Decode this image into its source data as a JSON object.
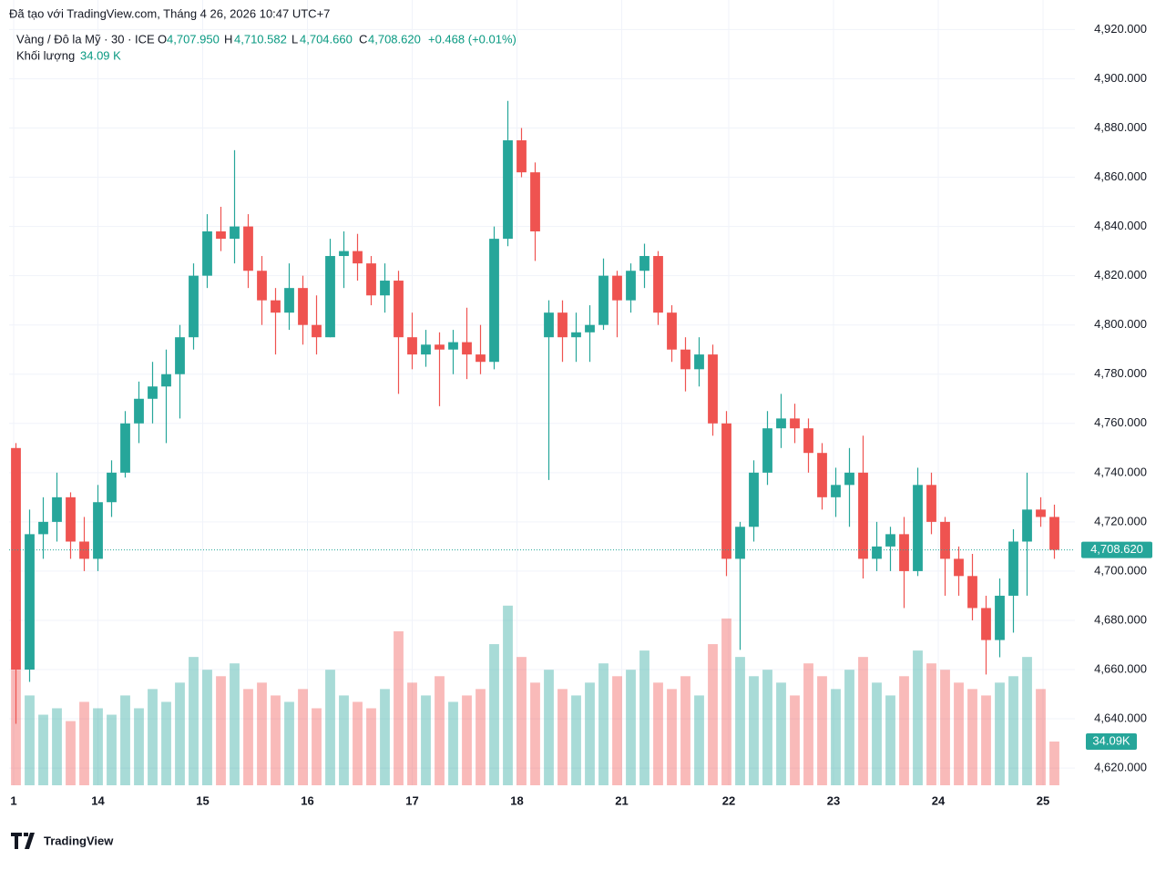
{
  "header": {
    "created": "Đã tạo với TradingView.com, Tháng 4 26, 2026 10:47 UTC+7",
    "symbol": "Vàng / Đô la Mỹ · 30 · ICE",
    "o_label": "O",
    "o_value": "4,707.950",
    "h_label": "H",
    "h_value": "4,710.582",
    "l_label": "L",
    "l_value": "4,704.660",
    "c_label": "C",
    "c_value": "4,708.620",
    "change": "+0.468 (+0.01%)",
    "volume_label": "Khối lượng",
    "volume_value": "34.09 K",
    "logo": "TradingView"
  },
  "chart_data": {
    "type": "candlestick",
    "x": [
      3,
      9,
      15,
      21,
      27,
      33,
      39,
      45,
      51,
      57,
      63,
      69,
      75,
      81,
      87,
      93,
      99,
      105,
      111,
      117,
      123,
      129,
      135,
      141,
      147,
      153,
      159,
      165,
      171,
      177,
      183,
      189,
      195,
      201,
      207,
      213,
      219,
      225,
      231,
      237,
      243,
      249,
      255,
      261,
      267,
      273,
      279,
      285,
      291,
      297,
      303,
      309,
      315,
      321,
      327,
      333,
      339,
      345,
      351,
      357,
      363,
      369,
      375,
      381,
      387,
      393,
      399,
      405,
      411,
      417,
      423,
      429,
      435,
      441,
      447,
      453,
      459
    ],
    "open": [
      4750,
      4660,
      4715,
      4720,
      4730,
      4712,
      4705,
      4728,
      4740,
      4760,
      4770,
      4775,
      4780,
      4795,
      4820,
      4838,
      4835,
      4840,
      4822,
      4810,
      4805,
      4815,
      4800,
      4795,
      4828,
      4830,
      4825,
      4812,
      4818,
      4795,
      4788,
      4792,
      4790,
      4793,
      4788,
      4785,
      4835,
      4875,
      4862,
      4795,
      4805,
      4795,
      4797,
      4800,
      4820,
      4810,
      4822,
      4828,
      4805,
      4790,
      4782,
      4788,
      4760,
      4705,
      4718,
      4740,
      4758,
      4762,
      4758,
      4748,
      4730,
      4735,
      4740,
      4705,
      4710,
      4715,
      4700,
      4735,
      4720,
      4705,
      4698,
      4685,
      4672,
      4690,
      4712,
      4725,
      4722
    ],
    "high": [
      4752,
      4725,
      4730,
      4740,
      4732,
      4722,
      4735,
      4745,
      4765,
      4777,
      4785,
      4790,
      4800,
      4825,
      4845,
      4848,
      4871,
      4845,
      4828,
      4815,
      4825,
      4820,
      4812,
      4835,
      4838,
      4837,
      4828,
      4825,
      4822,
      4805,
      4798,
      4797,
      4798,
      4807,
      4800,
      4840,
      4891,
      4880,
      4866,
      4810,
      4810,
      4805,
      4808,
      4827,
      4822,
      4825,
      4833,
      4830,
      4808,
      4795,
      4795,
      4792,
      4765,
      4720,
      4745,
      4765,
      4772,
      4768,
      4762,
      4752,
      4742,
      4750,
      4755,
      4720,
      4718,
      4722,
      4742,
      4740,
      4722,
      4710,
      4707,
      4690,
      4697,
      4717,
      4740,
      4730,
      4727
    ],
    "low": [
      4638,
      4655,
      4705,
      4712,
      4705,
      4700,
      4700,
      4722,
      4738,
      4752,
      4760,
      4752,
      4762,
      4790,
      4815,
      4830,
      4825,
      4815,
      4800,
      4788,
      4798,
      4792,
      4788,
      4795,
      4815,
      4818,
      4808,
      4805,
      4772,
      4782,
      4783,
      4767,
      4780,
      4778,
      4780,
      4782,
      4832,
      4860,
      4826,
      4737,
      4785,
      4785,
      4785,
      4798,
      4795,
      4805,
      4815,
      4800,
      4785,
      4773,
      4775,
      4755,
      4698,
      4668,
      4712,
      4735,
      4750,
      4752,
      4740,
      4725,
      4722,
      4718,
      4697,
      4700,
      4700,
      4685,
      4698,
      4715,
      4690,
      4690,
      4680,
      4658,
      4665,
      4675,
      4690,
      4718,
      4705
    ],
    "close": [
      4660,
      4715,
      4720,
      4730,
      4712,
      4705,
      4728,
      4740,
      4760,
      4770,
      4775,
      4780,
      4795,
      4820,
      4838,
      4835,
      4840,
      4822,
      4810,
      4805,
      4815,
      4800,
      4795,
      4828,
      4830,
      4825,
      4812,
      4818,
      4795,
      4788,
      4792,
      4790,
      4793,
      4788,
      4785,
      4835,
      4875,
      4862,
      4838,
      4805,
      4795,
      4797,
      4800,
      4820,
      4810,
      4822,
      4828,
      4805,
      4790,
      4782,
      4788,
      4760,
      4705,
      4718,
      4740,
      4758,
      4762,
      4758,
      4748,
      4730,
      4735,
      4740,
      4705,
      4710,
      4715,
      4700,
      4735,
      4720,
      4705,
      4698,
      4685,
      4672,
      4690,
      4712,
      4725,
      4722,
      4708.62
    ],
    "volume": [
      90,
      70,
      55,
      60,
      50,
      65,
      60,
      55,
      70,
      60,
      75,
      65,
      80,
      100,
      90,
      85,
      95,
      75,
      80,
      70,
      65,
      75,
      60,
      90,
      70,
      65,
      60,
      75,
      120,
      80,
      70,
      85,
      65,
      70,
      75,
      110,
      140,
      100,
      80,
      90,
      75,
      70,
      80,
      95,
      85,
      90,
      105,
      80,
      75,
      85,
      70,
      110,
      130,
      100,
      85,
      90,
      80,
      70,
      95,
      85,
      75,
      90,
      100,
      80,
      70,
      85,
      105,
      95,
      90,
      80,
      75,
      70,
      80,
      85,
      100,
      75,
      34.09
    ],
    "up_color": "#26a69a",
    "down_color": "#ef5350",
    "xlim": [
      0,
      468
    ],
    "ylim": [
      4613,
      4932
    ],
    "vlim": [
      0,
      612
    ],
    "yticks": [
      {
        "value": 4620,
        "label": "4,620.000"
      },
      {
        "value": 4640,
        "label": "4,640.000"
      },
      {
        "value": 4660,
        "label": "4,660.000"
      },
      {
        "value": 4680,
        "label": "4,680.000"
      },
      {
        "value": 4700,
        "label": "4,700.000"
      },
      {
        "value": 4720,
        "label": "4,720.000"
      },
      {
        "value": 4740,
        "label": "4,740.000"
      },
      {
        "value": 4760,
        "label": "4,760.000"
      },
      {
        "value": 4780,
        "label": "4,780.000"
      },
      {
        "value": 4800,
        "label": "4,800.000"
      },
      {
        "value": 4820,
        "label": "4,820.000"
      },
      {
        "value": 4840,
        "label": "4,840.000"
      },
      {
        "value": 4860,
        "label": "4,860.000"
      },
      {
        "value": 4880,
        "label": "4,880.000"
      },
      {
        "value": 4900,
        "label": "4,900.000"
      },
      {
        "value": 4920,
        "label": "4,920.000"
      }
    ],
    "xticks": [
      {
        "value": 2,
        "label": "1"
      },
      {
        "value": 39,
        "label": "14"
      },
      {
        "value": 85,
        "label": "15"
      },
      {
        "value": 131,
        "label": "16"
      },
      {
        "value": 177,
        "label": "17"
      },
      {
        "value": 223,
        "label": "18"
      },
      {
        "value": 269,
        "label": "21"
      },
      {
        "value": 316,
        "label": "22"
      },
      {
        "value": 362,
        "label": "23"
      },
      {
        "value": 408,
        "label": "24"
      },
      {
        "value": 454,
        "label": "25"
      }
    ],
    "last_price": {
      "value": 4708.62,
      "label": "4,708.620"
    },
    "last_volume": {
      "value": 34.09,
      "label": "34.09K"
    },
    "grid": true
  }
}
